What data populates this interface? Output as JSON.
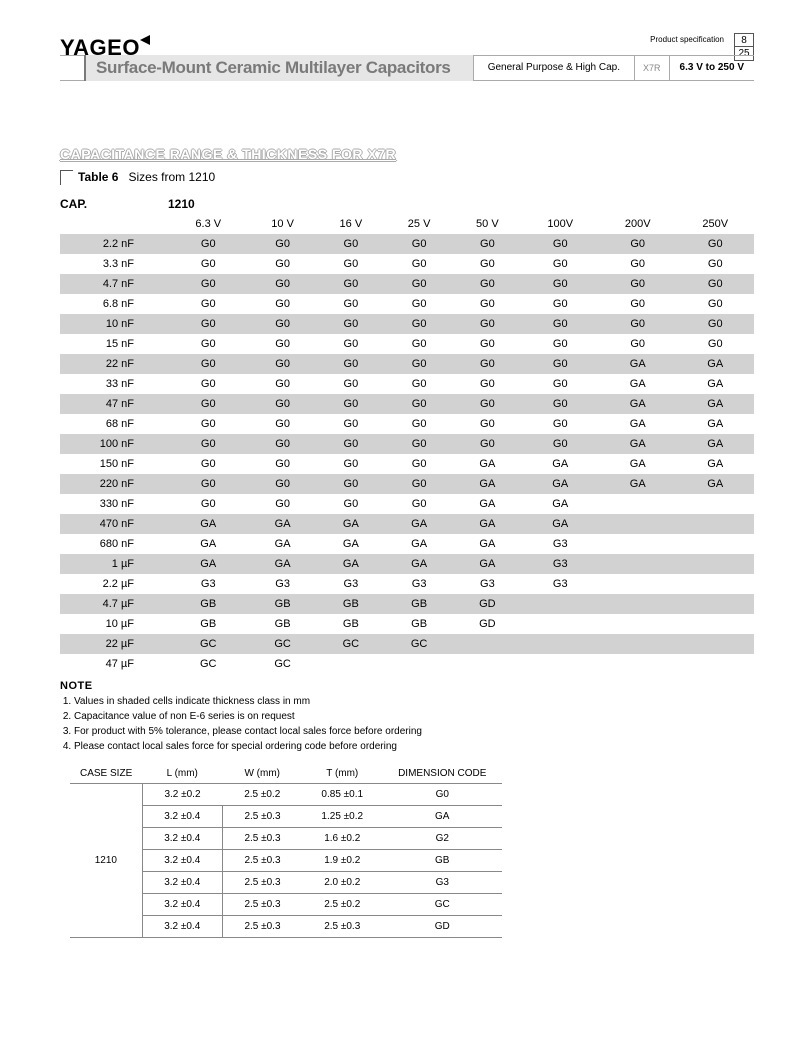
{
  "header": {
    "logo": "YAGEO",
    "product_spec_label": "Product specification",
    "page_num": "8",
    "page_total": "25",
    "title": "Surface-Mount Ceramic Multilayer Capacitors",
    "subtitle_a": "General Purpose & High Cap.",
    "subtitle_b": "X7R",
    "subtitle_c": "6.3 V to 250 V"
  },
  "section": {
    "title": "CAPACITANCE RANGE & THICKNESS FOR X7R",
    "caption_label": "Table 6",
    "caption_text": "Sizes from 1210"
  },
  "main_table": {
    "cap_header": "CAP.",
    "size_header": "1210",
    "voltage_cols": [
      "6.3 V",
      "10 V",
      "16 V",
      "25 V",
      "50 V",
      "100V",
      "200V",
      "250V"
    ],
    "rows": [
      {
        "cap": "2.2 nF",
        "vals": [
          "G0",
          "G0",
          "G0",
          "G0",
          "G0",
          "G0",
          "G0",
          "G0"
        ],
        "shaded": true
      },
      {
        "cap": "3.3 nF",
        "vals": [
          "G0",
          "G0",
          "G0",
          "G0",
          "G0",
          "G0",
          "G0",
          "G0"
        ],
        "shaded": false
      },
      {
        "cap": "4.7 nF",
        "vals": [
          "G0",
          "G0",
          "G0",
          "G0",
          "G0",
          "G0",
          "G0",
          "G0"
        ],
        "shaded": true
      },
      {
        "cap": "6.8 nF",
        "vals": [
          "G0",
          "G0",
          "G0",
          "G0",
          "G0",
          "G0",
          "G0",
          "G0"
        ],
        "shaded": false
      },
      {
        "cap": "10 nF",
        "vals": [
          "G0",
          "G0",
          "G0",
          "G0",
          "G0",
          "G0",
          "G0",
          "G0"
        ],
        "shaded": true
      },
      {
        "cap": "15 nF",
        "vals": [
          "G0",
          "G0",
          "G0",
          "G0",
          "G0",
          "G0",
          "G0",
          "G0"
        ],
        "shaded": false
      },
      {
        "cap": "22 nF",
        "vals": [
          "G0",
          "G0",
          "G0",
          "G0",
          "G0",
          "G0",
          "GA",
          "GA"
        ],
        "shaded": true
      },
      {
        "cap": "33 nF",
        "vals": [
          "G0",
          "G0",
          "G0",
          "G0",
          "G0",
          "G0",
          "GA",
          "GA"
        ],
        "shaded": false
      },
      {
        "cap": "47 nF",
        "vals": [
          "G0",
          "G0",
          "G0",
          "G0",
          "G0",
          "G0",
          "GA",
          "GA"
        ],
        "shaded": true
      },
      {
        "cap": "68 nF",
        "vals": [
          "G0",
          "G0",
          "G0",
          "G0",
          "G0",
          "G0",
          "GA",
          "GA"
        ],
        "shaded": false
      },
      {
        "cap": "100 nF",
        "vals": [
          "G0",
          "G0",
          "G0",
          "G0",
          "G0",
          "G0",
          "GA",
          "GA"
        ],
        "shaded": true
      },
      {
        "cap": "150 nF",
        "vals": [
          "G0",
          "G0",
          "G0",
          "G0",
          "GA",
          "GA",
          "GA",
          "GA"
        ],
        "shaded": false
      },
      {
        "cap": "220 nF",
        "vals": [
          "G0",
          "G0",
          "G0",
          "G0",
          "GA",
          "GA",
          "GA",
          "GA"
        ],
        "shaded": true
      },
      {
        "cap": "330 nF",
        "vals": [
          "G0",
          "G0",
          "G0",
          "G0",
          "GA",
          "GA",
          "",
          ""
        ],
        "shaded": false
      },
      {
        "cap": "470 nF",
        "vals": [
          "GA",
          "GA",
          "GA",
          "GA",
          "GA",
          "GA",
          "",
          ""
        ],
        "shaded": true
      },
      {
        "cap": "680 nF",
        "vals": [
          "GA",
          "GA",
          "GA",
          "GA",
          "GA",
          "G3",
          "",
          ""
        ],
        "shaded": false
      },
      {
        "cap": "1 µF",
        "vals": [
          "GA",
          "GA",
          "GA",
          "GA",
          "GA",
          "G3",
          "",
          ""
        ],
        "shaded": true
      },
      {
        "cap": "2.2 µF",
        "vals": [
          "G3",
          "G3",
          "G3",
          "G3",
          "G3",
          "G3",
          "",
          ""
        ],
        "shaded": false
      },
      {
        "cap": "4.7 µF",
        "vals": [
          "GB",
          "GB",
          "GB",
          "GB",
          "GD",
          "",
          "",
          ""
        ],
        "shaded": true
      },
      {
        "cap": "10 µF",
        "vals": [
          "GB",
          "GB",
          "GB",
          "GB",
          "GD",
          "",
          "",
          ""
        ],
        "shaded": false
      },
      {
        "cap": "22 µF",
        "vals": [
          "GC",
          "GC",
          "GC",
          "GC",
          "",
          "",
          "",
          ""
        ],
        "shaded": true
      },
      {
        "cap": "47 µF",
        "vals": [
          "GC",
          "GC",
          "",
          "",
          "",
          "",
          "",
          ""
        ],
        "shaded": false
      }
    ]
  },
  "notes": {
    "heading": "NOTE",
    "items": [
      "Values in shaded cells indicate thickness class in mm",
      "Capacitance value of non E-6 series is on request",
      "For product with 5% tolerance, please contact local sales force before ordering",
      "Please contact local sales force for special ordering code before ordering"
    ]
  },
  "dim_table": {
    "headers": [
      "CASE SIZE",
      "L (mm)",
      "W (mm)",
      "T (mm)",
      "DIMENSION CODE"
    ],
    "case_size": "1210",
    "rows": [
      {
        "L": "3.2 ±0.2",
        "W": "2.5 ±0.2",
        "T": "0.85 ±0.1",
        "code": "G0"
      },
      {
        "L": "3.2 ±0.4",
        "W": "2.5 ±0.3",
        "T": "1.25 ±0.2",
        "code": "GA"
      },
      {
        "L": "3.2 ±0.4",
        "W": "2.5 ±0.3",
        "T": "1.6 ±0.2",
        "code": "G2"
      },
      {
        "L": "3.2 ±0.4",
        "W": "2.5 ±0.3",
        "T": "1.9 ±0.2",
        "code": "GB"
      },
      {
        "L": "3.2 ±0.4",
        "W": "2.5 ±0.3",
        "T": "2.0 ±0.2",
        "code": "G3"
      },
      {
        "L": "3.2 ±0.4",
        "W": "2.5 ±0.3",
        "T": "2.5 ±0.2",
        "code": "GC"
      },
      {
        "L": "3.2 ±0.4",
        "W": "2.5 ±0.3",
        "T": "2.5 ±0.3",
        "code": "GD"
      }
    ]
  },
  "colors": {
    "row_shade": "#d2d2d2",
    "title_bg": "#e6e6e6",
    "title_text": "#7a7a7a"
  }
}
